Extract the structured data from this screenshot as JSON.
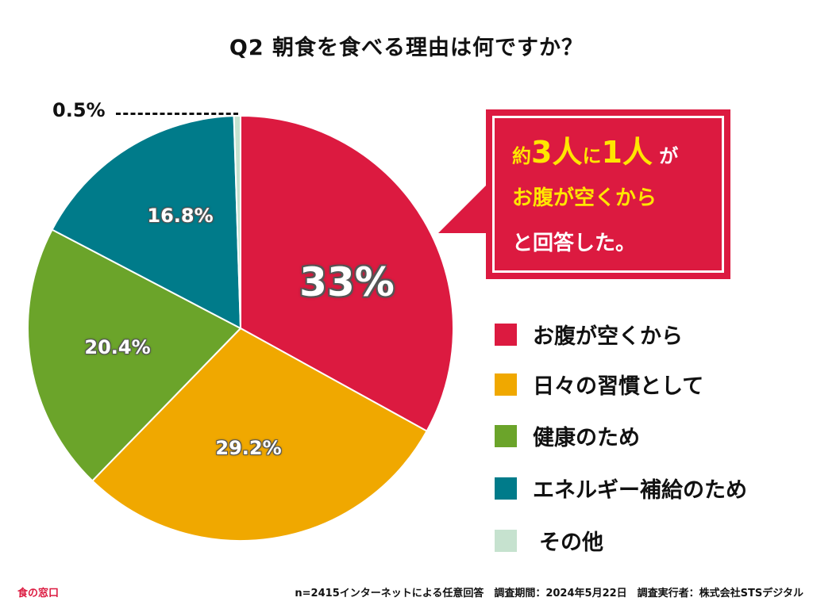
{
  "colors": {
    "red": "#dc1a40",
    "orange": "#f0a800",
    "green": "#6ba42a",
    "teal": "#007b8a",
    "light_green": "#c6e2cf",
    "callout_bg": "#dc1a40",
    "highlight": "#ffe600",
    "brand": "#dc1a40"
  },
  "chart_data": {
    "type": "pie",
    "title": "Q2 朝食を食べる理由は何ですか？",
    "categories": [
      "お腹が空くから",
      "日々の習慣として",
      "健康のため",
      "エネルギー補給のため",
      "その他"
    ],
    "values": [
      33,
      29.2,
      20.4,
      16.8,
      0.5
    ],
    "value_labels": [
      "33%",
      "29.2%",
      "20.4%",
      "16.8%",
      "0.5%"
    ],
    "colors": [
      "#dc1a40",
      "#f0a800",
      "#6ba42a",
      "#007b8a",
      "#c6e2cf"
    ],
    "start": "top",
    "direction": "clockwise",
    "legend_position": "right"
  },
  "callout": {
    "prefix": "約",
    "highlight_1": "3人",
    "middle": "に",
    "highlight_2": "1人",
    "suffix": " が",
    "line2": "お腹が空くから",
    "line3": "と回答した。"
  },
  "footer": {
    "brand": "食の窓口",
    "note": "n=2415インターネットによる任意回答　調査期間：2024年5月22日　調査実行者：株式会社STSデジタル"
  }
}
